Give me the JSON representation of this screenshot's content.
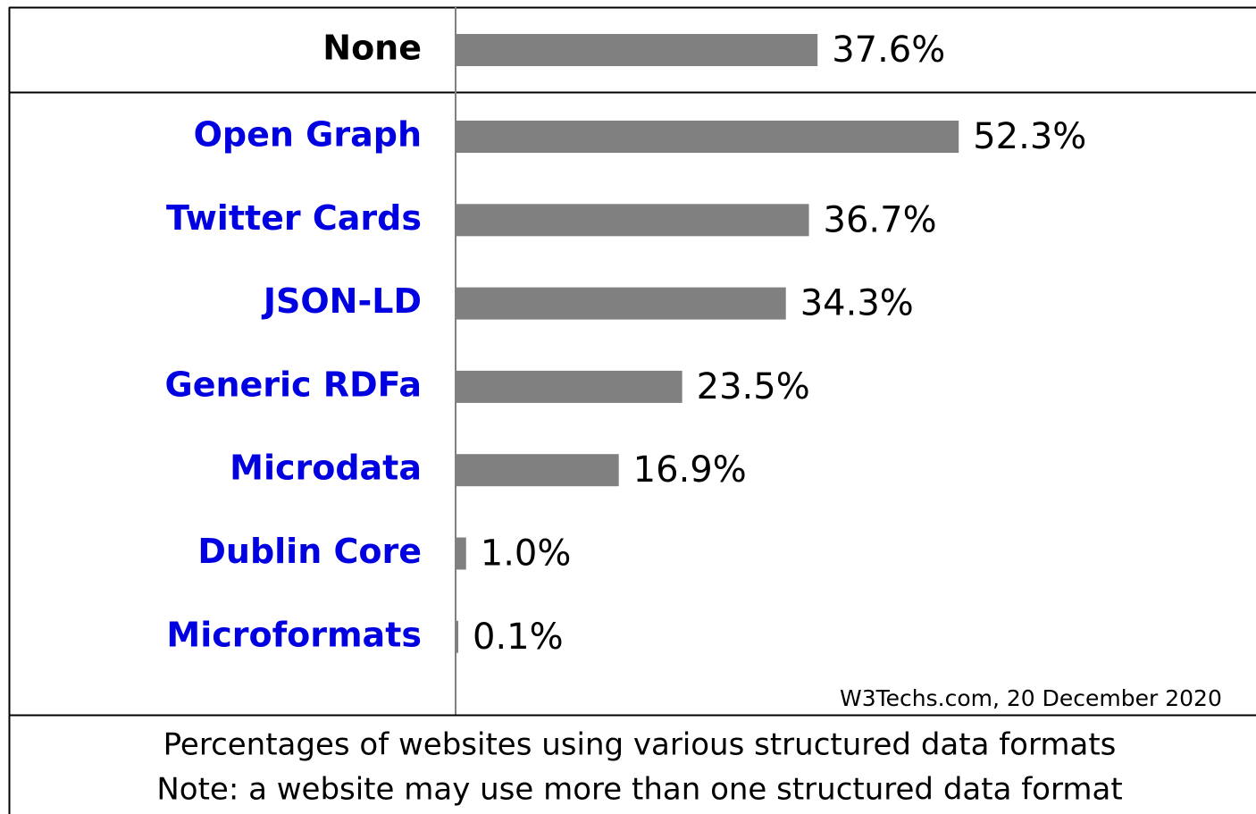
{
  "chart_data": {
    "type": "bar",
    "orientation": "horizontal",
    "categories": [
      "None",
      "Open Graph",
      "Twitter Cards",
      "JSON-LD",
      "Generic RDFa",
      "Microdata",
      "Dublin Core",
      "Microformats"
    ],
    "values": [
      37.6,
      52.3,
      36.7,
      34.3,
      23.5,
      16.9,
      1.0,
      0.1
    ],
    "value_labels": [
      "37.6%",
      "52.3%",
      "36.7%",
      "34.3%",
      "23.5%",
      "16.9%",
      "1.0%",
      "0.1%"
    ],
    "color": "#808080",
    "source": "W3Techs.com, 20 December 2020",
    "notes": [
      "Percentages of websites using various structured data formats",
      "Note: a website may use more than one structured data format"
    ]
  }
}
